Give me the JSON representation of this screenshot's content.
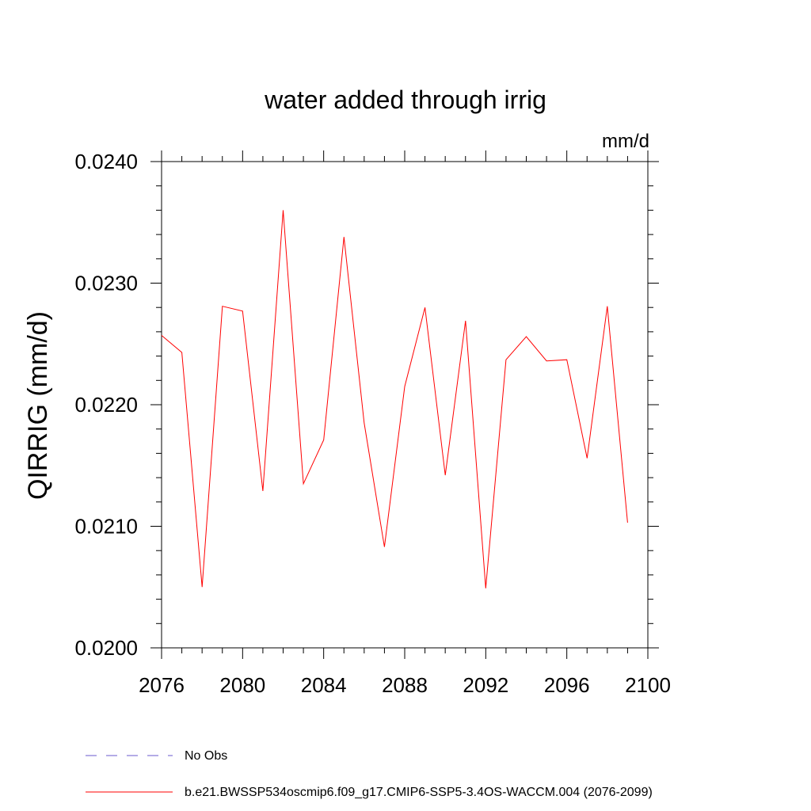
{
  "chart_data": {
    "type": "line",
    "title": "water added through irrig",
    "units": "mm/d",
    "xlabel": "",
    "ylabel": "QIRRIG  (mm/d)",
    "xlim": [
      2076,
      2100
    ],
    "ylim": [
      0.02,
      0.024
    ],
    "x_ticks": [
      2076,
      2080,
      2084,
      2088,
      2092,
      2096,
      2100
    ],
    "x_tick_labels": [
      "2076",
      "2080",
      "2084",
      "2088",
      "2092",
      "2096",
      "2100"
    ],
    "y_ticks": [
      0.02,
      0.021,
      0.022,
      0.023,
      0.024
    ],
    "y_tick_labels": [
      "0.0200",
      "0.0210",
      "0.0220",
      "0.0230",
      "0.0240"
    ],
    "x_minor_step": 1,
    "y_minor_step": 0.0002,
    "series": [
      {
        "name": "b.e21.BWSSP534oscmip6.f09_g17.CMIP6-SSP5-3.4OS-WACCM.004 (2076-2099)",
        "color": "#ff0000",
        "style": "solid",
        "x": [
          2076,
          2077,
          2078,
          2079,
          2080,
          2081,
          2082,
          2083,
          2084,
          2085,
          2086,
          2087,
          2088,
          2089,
          2090,
          2091,
          2092,
          2093,
          2094,
          2095,
          2096,
          2097,
          2098,
          2099
        ],
        "values": [
          0.02257,
          0.02243,
          0.0205,
          0.02281,
          0.02277,
          0.02129,
          0.0236,
          0.02135,
          0.02171,
          0.02338,
          0.02185,
          0.02083,
          0.02215,
          0.0228,
          0.02142,
          0.02269,
          0.02049,
          0.02237,
          0.02256,
          0.02236,
          0.02237,
          0.02156,
          0.02281,
          0.02103
        ]
      }
    ],
    "legend": [
      {
        "label": "No Obs",
        "color": "#6a5acd",
        "style": "dashed"
      },
      {
        "label": "b.e21.BWSSP534oscmip6.f09_g17.CMIP6-SSP5-3.4OS-WACCM.004 (2076-2099)",
        "color": "#ff0000",
        "style": "solid"
      }
    ],
    "legend_position": "bottom-left"
  }
}
